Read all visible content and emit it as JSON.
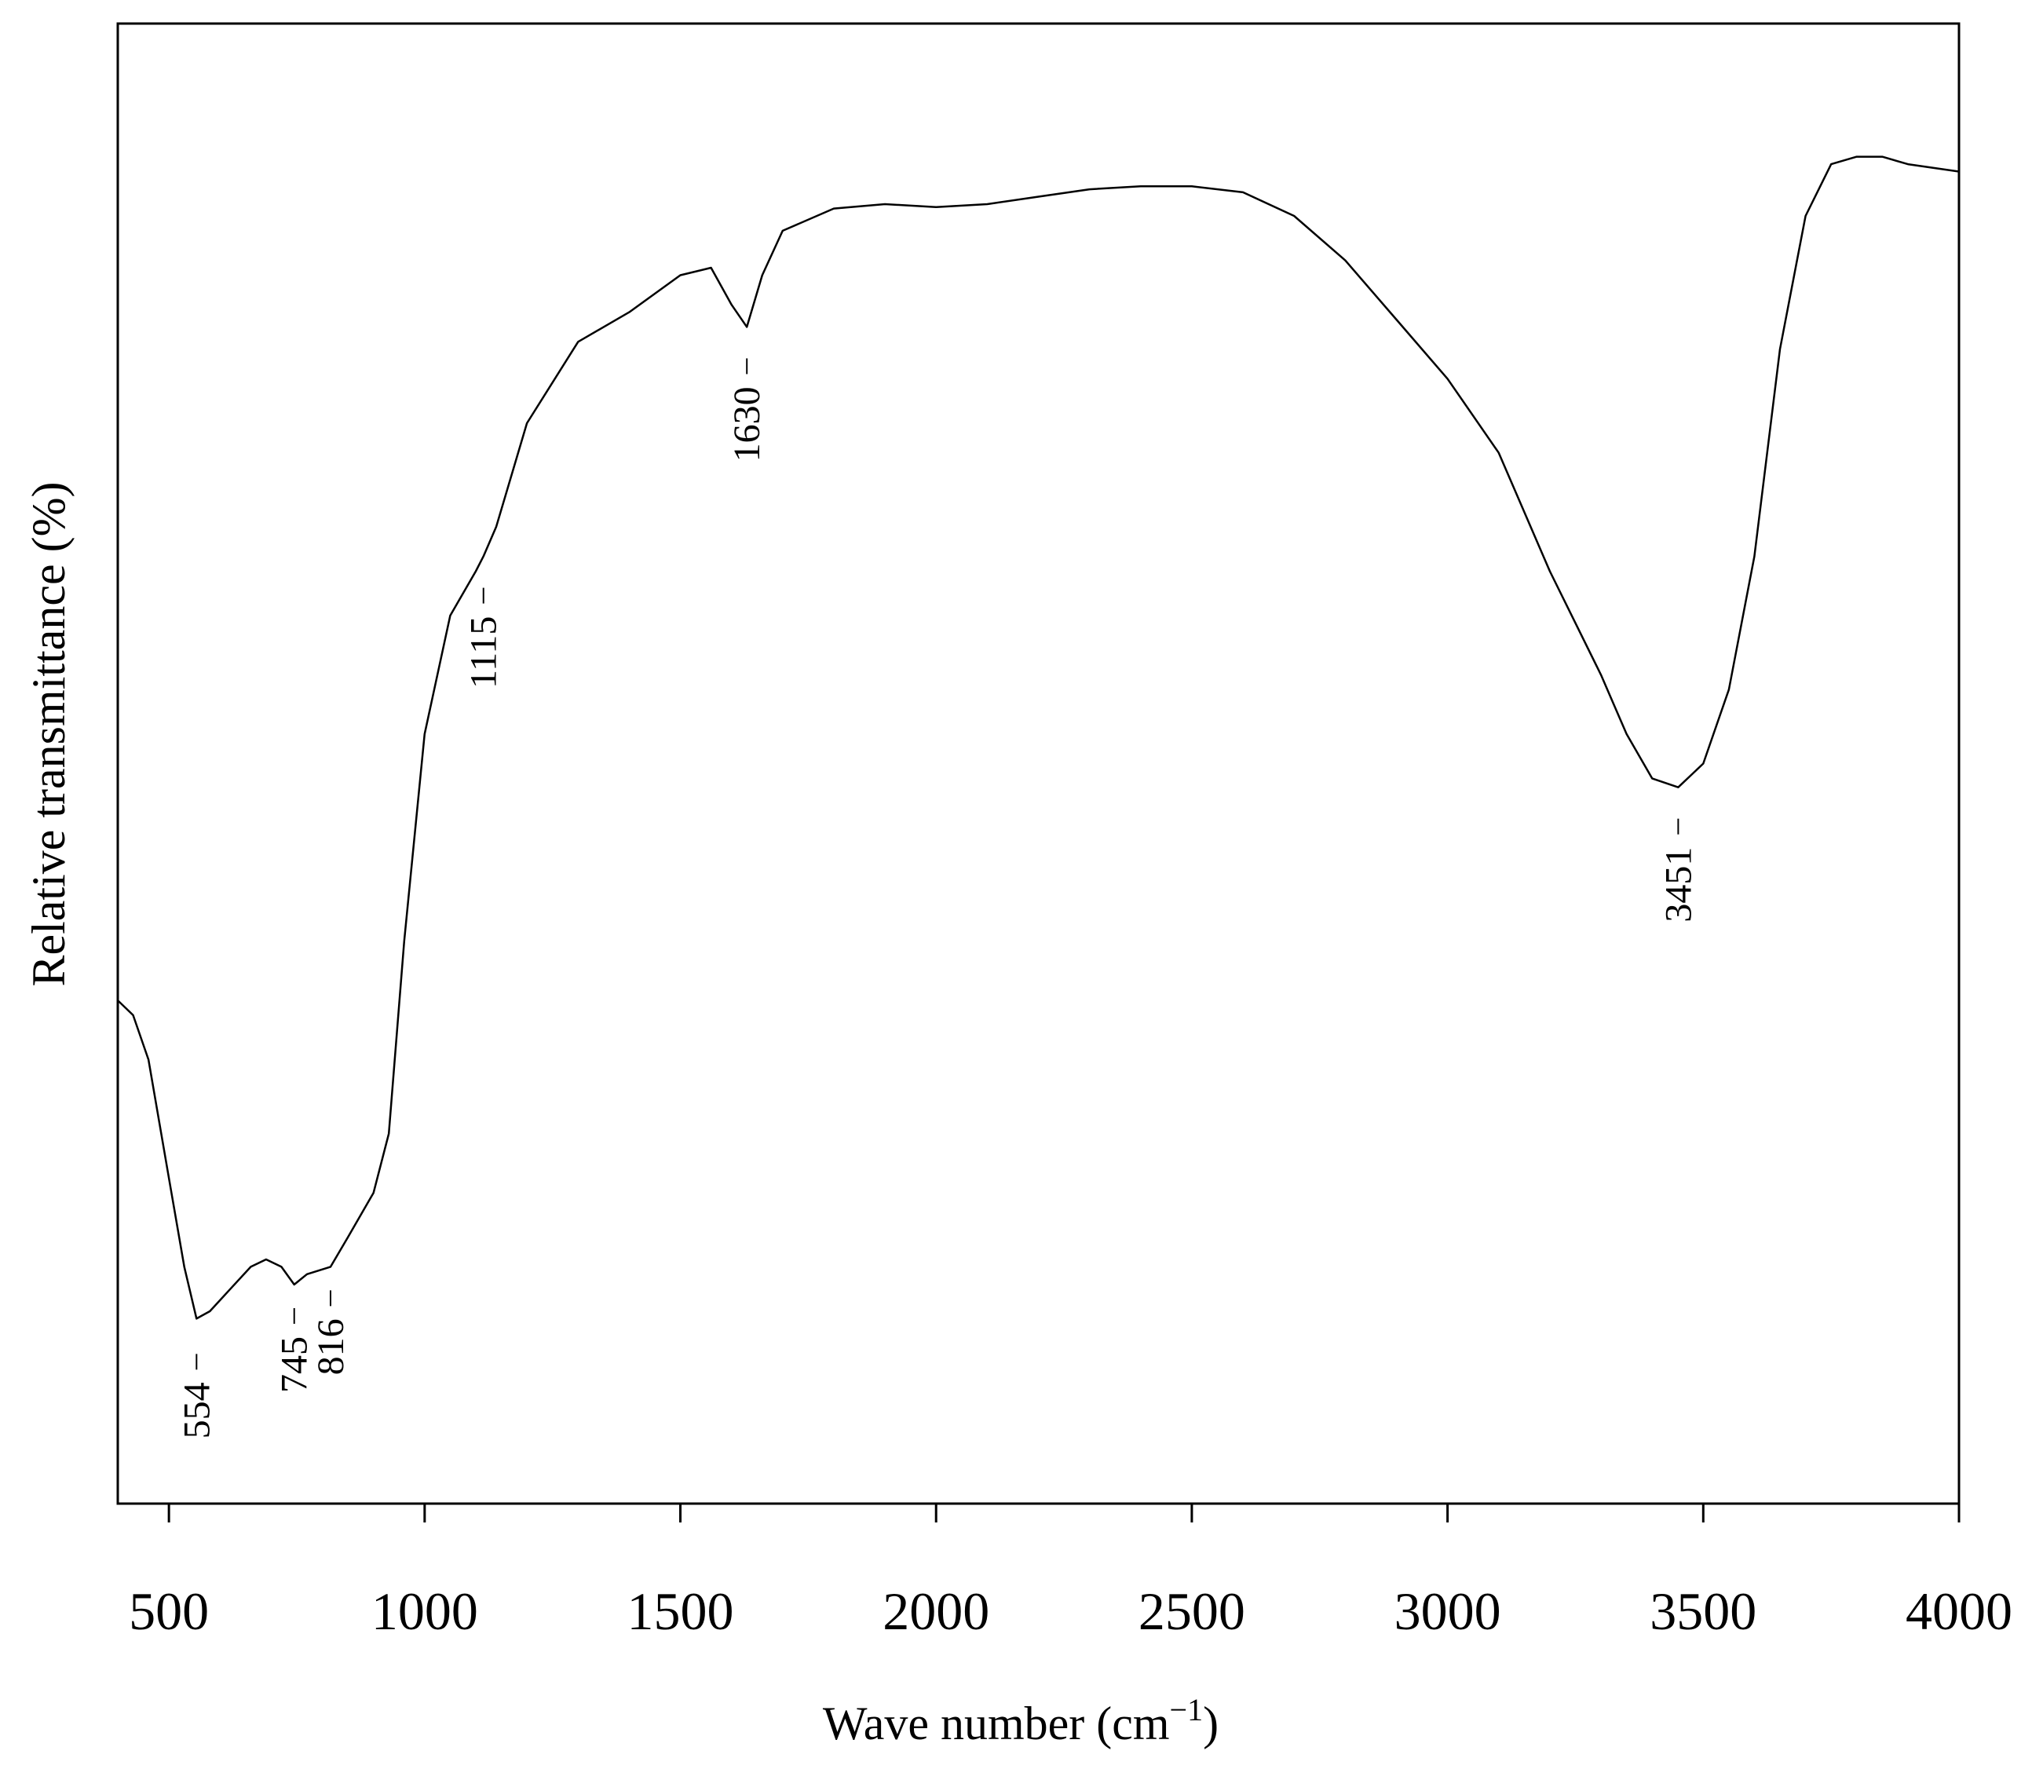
{
  "chart_data": {
    "type": "line",
    "xlabel": "Wave number (cm",
    "xlabel_sup": "−1",
    "xlabel_end": ")",
    "ylabel": "Relative transmittance (%)",
    "xlim": [
      400,
      4000
    ],
    "ylim": [
      0,
      100
    ],
    "grid": false,
    "legend": "none",
    "x_ticks": [
      500,
      1000,
      1500,
      2000,
      2500,
      3000,
      3500,
      4000
    ],
    "x_tick_labels": [
      "500",
      "1000",
      "1500",
      "2000",
      "2500",
      "3000",
      "3500",
      "4000"
    ],
    "series": [
      {
        "color": "#000000",
        "points": [
          [
            400,
            34
          ],
          [
            430,
            33
          ],
          [
            460,
            30
          ],
          [
            500,
            22
          ],
          [
            530,
            16
          ],
          [
            554,
            12.5
          ],
          [
            580,
            13
          ],
          [
            620,
            14.5
          ],
          [
            660,
            16
          ],
          [
            690,
            16.5
          ],
          [
            720,
            16
          ],
          [
            745,
            14.8
          ],
          [
            770,
            15.5
          ],
          [
            816,
            16
          ],
          [
            850,
            18
          ],
          [
            900,
            21
          ],
          [
            930,
            25
          ],
          [
            960,
            38
          ],
          [
            1000,
            52
          ],
          [
            1050,
            60
          ],
          [
            1100,
            63
          ],
          [
            1115,
            64
          ],
          [
            1140,
            66
          ],
          [
            1200,
            73
          ],
          [
            1300,
            78.5
          ],
          [
            1400,
            80.5
          ],
          [
            1500,
            83
          ],
          [
            1560,
            83.5
          ],
          [
            1600,
            81
          ],
          [
            1630,
            79.5
          ],
          [
            1660,
            83
          ],
          [
            1700,
            86
          ],
          [
            1800,
            87.5
          ],
          [
            1900,
            87.8
          ],
          [
            2000,
            87.6
          ],
          [
            2100,
            87.8
          ],
          [
            2200,
            88.3
          ],
          [
            2300,
            88.8
          ],
          [
            2400,
            89
          ],
          [
            2500,
            89
          ],
          [
            2600,
            88.6
          ],
          [
            2700,
            87
          ],
          [
            2800,
            84
          ],
          [
            2900,
            80
          ],
          [
            3000,
            76
          ],
          [
            3100,
            71
          ],
          [
            3200,
            63
          ],
          [
            3300,
            56
          ],
          [
            3350,
            52
          ],
          [
            3400,
            49
          ],
          [
            3451,
            48.4
          ],
          [
            3500,
            50
          ],
          [
            3550,
            55
          ],
          [
            3600,
            64
          ],
          [
            3650,
            78
          ],
          [
            3700,
            87
          ],
          [
            3750,
            90.5
          ],
          [
            3800,
            91
          ],
          [
            3850,
            91
          ],
          [
            3900,
            90.5
          ],
          [
            4000,
            90
          ]
        ]
      }
    ],
    "annotations": [
      {
        "x": 554,
        "label": "554"
      },
      {
        "x": 745,
        "label": "745"
      },
      {
        "x": 816,
        "label": "816"
      },
      {
        "x": 1115,
        "label": "1115"
      },
      {
        "x": 1630,
        "label": "1630"
      },
      {
        "x": 3451,
        "label": "3451"
      }
    ]
  }
}
